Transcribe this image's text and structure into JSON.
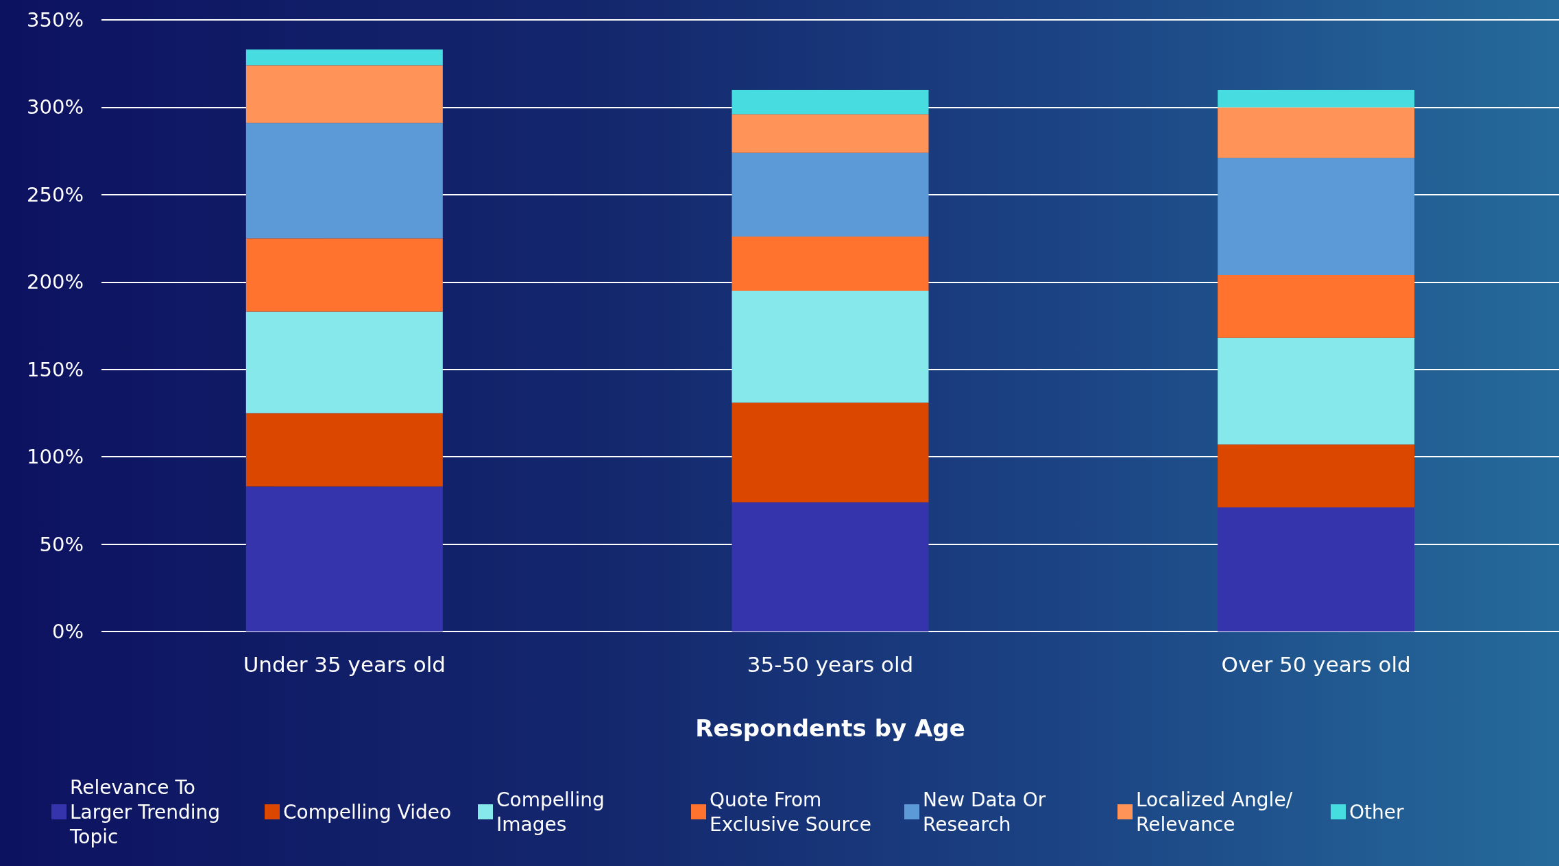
{
  "chart_data": {
    "type": "bar",
    "stacked": true,
    "xlabel": "Respondents by Age",
    "categories": [
      "Under 35 years old",
      "35-50 years old",
      "Over 50 years old"
    ],
    "series": [
      {
        "name": "Relevance To Larger Trending Topic",
        "color": "#3634ac",
        "values": [
          83,
          74,
          71
        ]
      },
      {
        "name": "Compelling Video",
        "color": "#dc4700",
        "values": [
          42,
          57,
          36
        ]
      },
      {
        "name": "Compelling Images",
        "color": "#86e8eb",
        "values": [
          58,
          64,
          61
        ]
      },
      {
        "name": "Quote From Exclusive Source",
        "color": "#ff732e",
        "values": [
          42,
          31,
          36
        ]
      },
      {
        "name": "New Data Or Research",
        "color": "#5b9ad6",
        "values": [
          66,
          48,
          67
        ]
      },
      {
        "name": "Localized Angle/Relevance",
        "color": "#ff9358",
        "values": [
          33,
          22,
          29
        ]
      },
      {
        "name": "Other",
        "color": "#46dce0",
        "values": [
          9,
          14,
          10
        ]
      }
    ],
    "ylim": [
      0,
      350
    ],
    "yticks": [
      {
        "value": 0,
        "label": "0%"
      },
      {
        "value": 50,
        "label": "50%"
      },
      {
        "value": 100,
        "label": "100%"
      },
      {
        "value": 150,
        "label": "150%"
      },
      {
        "value": 200,
        "label": "200%"
      },
      {
        "value": 250,
        "label": "250%"
      },
      {
        "value": 300,
        "label": "300%"
      },
      {
        "value": 350,
        "label": "350%"
      }
    ],
    "grid": "y",
    "legend": "bottom"
  }
}
